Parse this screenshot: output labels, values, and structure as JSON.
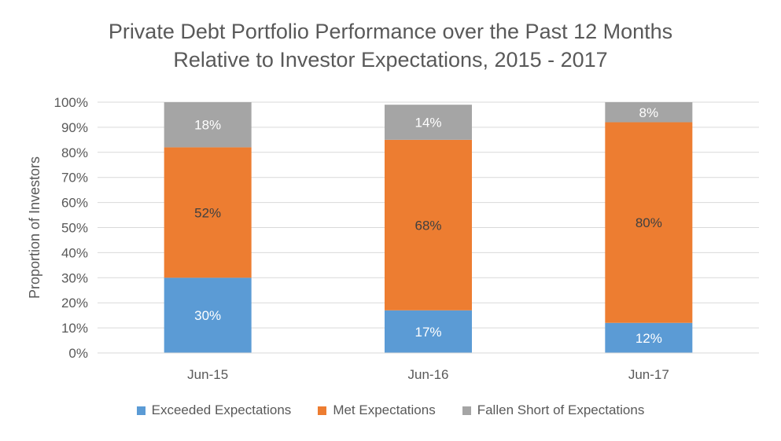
{
  "chart_data": {
    "type": "bar",
    "stacked": true,
    "title": [
      "Private Debt Portfolio Performance over the Past 12 Months",
      "Relative to Investor Expectations, 2015 - 2017"
    ],
    "xlabel": "",
    "ylabel": "Proportion of Investors",
    "ylim": [
      0,
      100
    ],
    "yticks": [
      "0%",
      "10%",
      "20%",
      "30%",
      "40%",
      "50%",
      "60%",
      "70%",
      "80%",
      "90%",
      "100%"
    ],
    "categories": [
      "Jun-15",
      "Jun-16",
      "Jun-17"
    ],
    "series": [
      {
        "name": "Exceeded Expectations",
        "color": "#5b9bd5",
        "values": [
          30,
          17,
          12
        ],
        "labels": [
          "30%",
          "17%",
          "12%"
        ]
      },
      {
        "name": "Met Expectations",
        "color": "#ed7d31",
        "values": [
          52,
          68,
          80
        ],
        "labels": [
          "52%",
          "68%",
          "80%"
        ]
      },
      {
        "name": "Fallen Short of Expectations",
        "color": "#a5a5a5",
        "values": [
          18,
          14,
          8
        ],
        "labels": [
          "18%",
          "14%",
          "8%"
        ]
      }
    ],
    "grid": true,
    "legend": "bottom"
  }
}
